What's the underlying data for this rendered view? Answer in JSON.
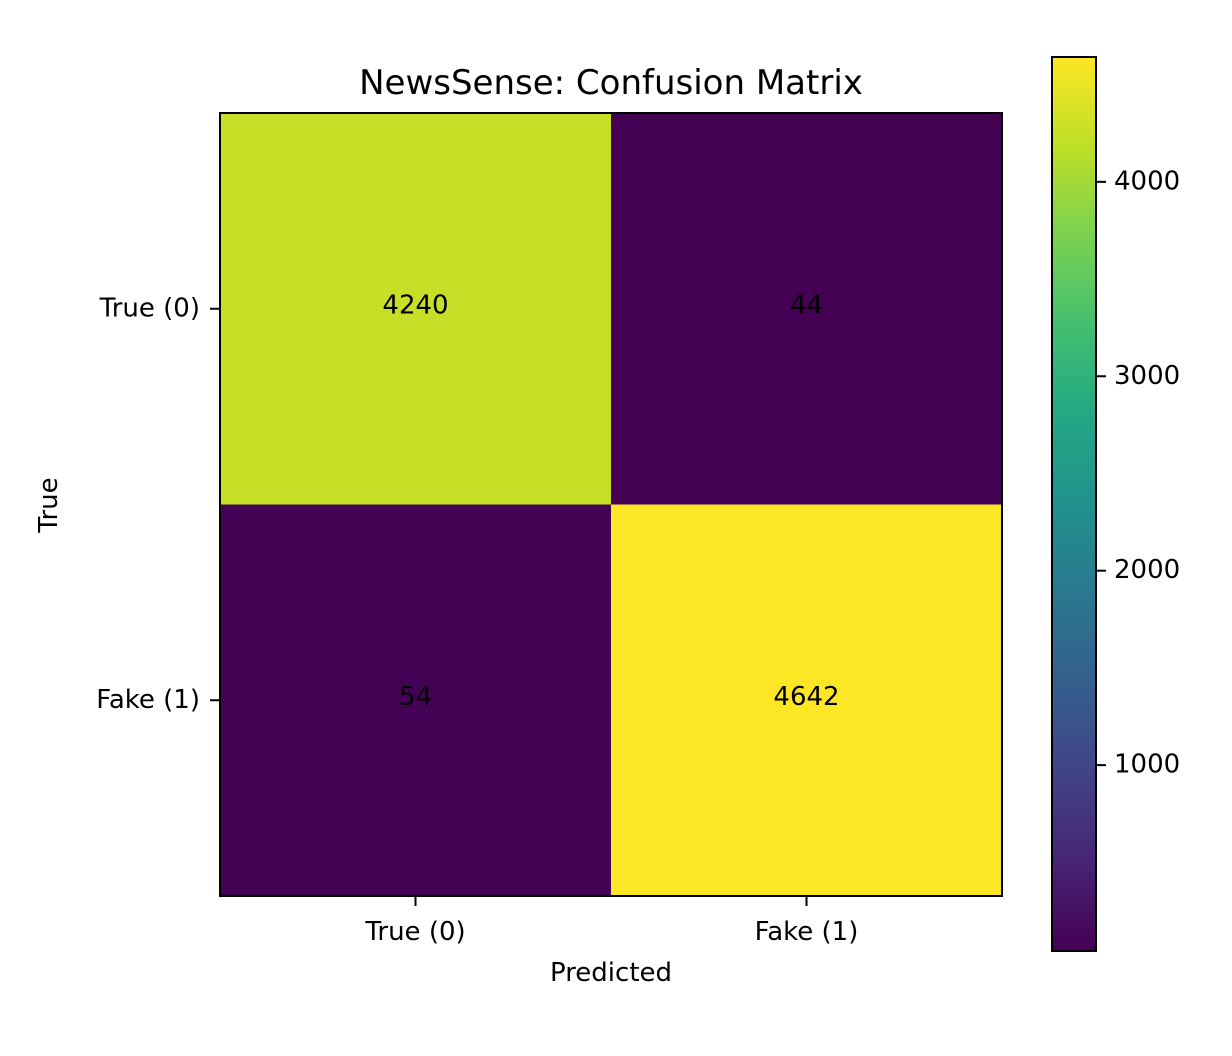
{
  "chart_data": {
    "type": "heatmap",
    "title": "NewsSense: Confusion Matrix",
    "xlabel": "Predicted",
    "ylabel": "True",
    "x_categories": [
      "True (0)",
      "Fake (1)"
    ],
    "y_categories": [
      "True (0)",
      "Fake (1)"
    ],
    "matrix": [
      [
        4240,
        44
      ],
      [
        54,
        4642
      ]
    ],
    "colormap": "viridis",
    "colorbar": {
      "range": [
        44,
        4642
      ],
      "ticks": [
        1000,
        2000,
        3000,
        4000
      ],
      "tick_labels": [
        "1000",
        "2000",
        "3000",
        "4000"
      ]
    },
    "grid": false,
    "legend": "none"
  }
}
